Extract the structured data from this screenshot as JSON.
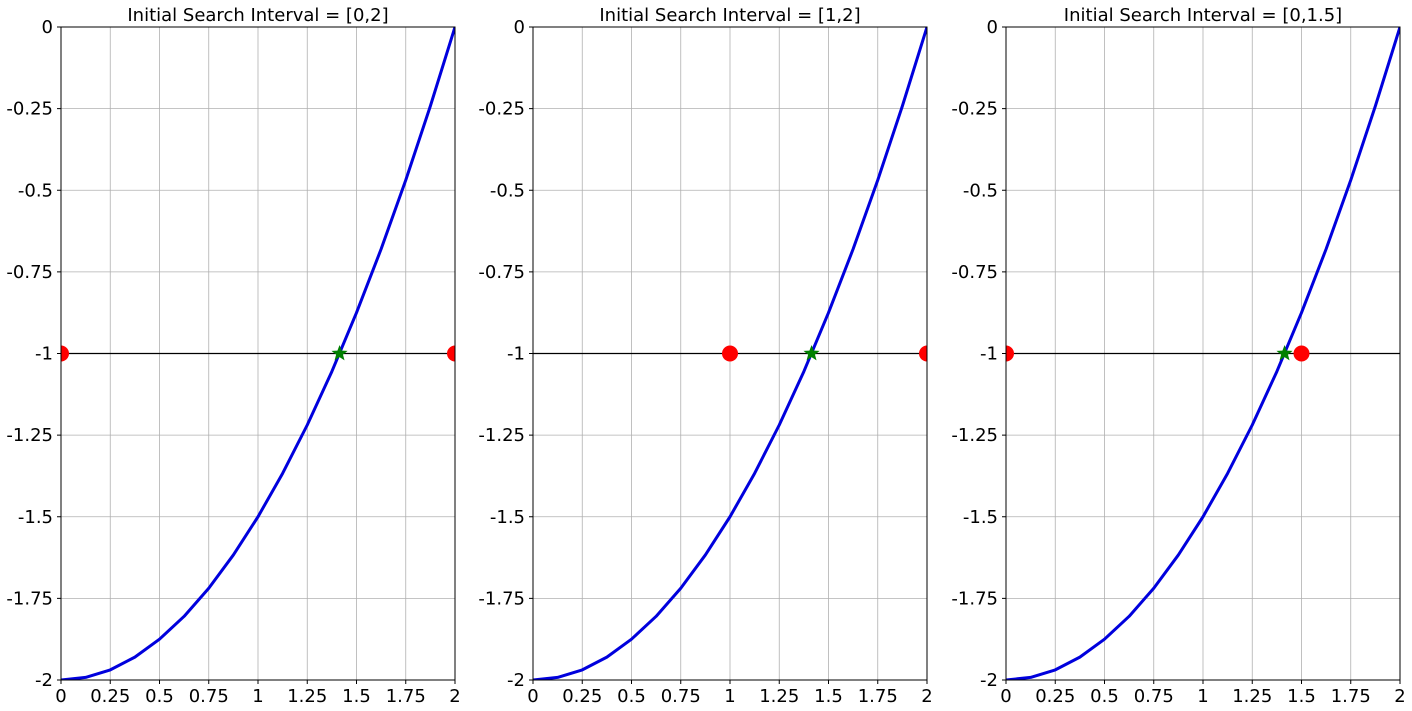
{
  "chart_data": [
    {
      "type": "line",
      "title": "Initial Search Interval = [0,2]",
      "xlim": [
        0,
        2
      ],
      "ylim": [
        -2,
        0
      ],
      "grid": true,
      "x_ticks": [
        0,
        0.25,
        0.5,
        0.75,
        1,
        1.25,
        1.5,
        1.75,
        2
      ],
      "x_tick_labels": [
        "0",
        "0.25",
        "0.5",
        "0.75",
        "1",
        "1.25",
        "1.5",
        "1.75",
        "2"
      ],
      "y_ticks": [
        0,
        -0.25,
        -0.5,
        -0.75,
        -1,
        -1.25,
        -1.5,
        -1.75,
        -2
      ],
      "y_tick_labels": [
        "0",
        "-0.25",
        "-0.5",
        "-0.75",
        "-1",
        "-1.25",
        "-1.5",
        "-1.75",
        "-2"
      ],
      "reference_line_y": -1,
      "curve": {
        "color": "#0000dd",
        "x": [
          0,
          0.125,
          0.25,
          0.375,
          0.5,
          0.625,
          0.75,
          0.875,
          1,
          1.125,
          1.25,
          1.375,
          1.5,
          1.625,
          1.75,
          1.875,
          2
        ],
        "y": [
          -2,
          -1.992,
          -1.969,
          -1.93,
          -1.875,
          -1.805,
          -1.719,
          -1.617,
          -1.5,
          -1.367,
          -1.219,
          -1.055,
          -0.875,
          -0.68,
          -0.469,
          -0.242,
          0
        ]
      },
      "endpoints": {
        "color": "#ff0000",
        "x": [
          0,
          2
        ],
        "y": [
          -1,
          -1
        ]
      },
      "root": {
        "color": "#008000",
        "x": 1.414,
        "y": -1
      }
    },
    {
      "type": "line",
      "title": "Initial Search Interval = [1,2]",
      "xlim": [
        0,
        2
      ],
      "ylim": [
        -2,
        0
      ],
      "grid": true,
      "x_ticks": [
        0,
        0.25,
        0.5,
        0.75,
        1,
        1.25,
        1.5,
        1.75,
        2
      ],
      "x_tick_labels": [
        "0",
        "0.25",
        "0.5",
        "0.75",
        "1",
        "1.25",
        "1.5",
        "1.75",
        "2"
      ],
      "y_ticks": [
        0,
        -0.25,
        -0.5,
        -0.75,
        -1,
        -1.25,
        -1.5,
        -1.75,
        -2
      ],
      "y_tick_labels": [
        "0",
        "-0.25",
        "-0.5",
        "-0.75",
        "-1",
        "-1.25",
        "-1.5",
        "-1.75",
        "-2"
      ],
      "reference_line_y": -1,
      "curve": {
        "color": "#0000dd",
        "x": [
          0,
          0.125,
          0.25,
          0.375,
          0.5,
          0.625,
          0.75,
          0.875,
          1,
          1.125,
          1.25,
          1.375,
          1.5,
          1.625,
          1.75,
          1.875,
          2
        ],
        "y": [
          -2,
          -1.992,
          -1.969,
          -1.93,
          -1.875,
          -1.805,
          -1.719,
          -1.617,
          -1.5,
          -1.367,
          -1.219,
          -1.055,
          -0.875,
          -0.68,
          -0.469,
          -0.242,
          0
        ]
      },
      "endpoints": {
        "color": "#ff0000",
        "x": [
          1,
          2
        ],
        "y": [
          -1,
          -1
        ]
      },
      "root": {
        "color": "#008000",
        "x": 1.414,
        "y": -1
      }
    },
    {
      "type": "line",
      "title": "Initial Search Interval = [0,1.5]",
      "xlim": [
        0,
        2
      ],
      "ylim": [
        -2,
        0
      ],
      "grid": true,
      "x_ticks": [
        0,
        0.25,
        0.5,
        0.75,
        1,
        1.25,
        1.5,
        1.75,
        2
      ],
      "x_tick_labels": [
        "0",
        "0.25",
        "0.5",
        "0.75",
        "1",
        "1.25",
        "1.5",
        "1.75",
        "2"
      ],
      "y_ticks": [
        0,
        -0.25,
        -0.5,
        -0.75,
        -1,
        -1.25,
        -1.5,
        -1.75,
        -2
      ],
      "y_tick_labels": [
        "0",
        "-0.25",
        "-0.5",
        "-0.75",
        "-1",
        "-1.25",
        "-1.5",
        "-1.75",
        "-2"
      ],
      "reference_line_y": -1,
      "curve": {
        "color": "#0000dd",
        "x": [
          0,
          0.125,
          0.25,
          0.375,
          0.5,
          0.625,
          0.75,
          0.875,
          1,
          1.125,
          1.25,
          1.375,
          1.5,
          1.625,
          1.75,
          1.875,
          2
        ],
        "y": [
          -2,
          -1.992,
          -1.969,
          -1.93,
          -1.875,
          -1.805,
          -1.719,
          -1.617,
          -1.5,
          -1.367,
          -1.219,
          -1.055,
          -0.875,
          -0.68,
          -0.469,
          -0.242,
          0
        ]
      },
      "endpoints": {
        "color": "#ff0000",
        "x": [
          0,
          1.5
        ],
        "y": [
          -1,
          -1
        ]
      },
      "root": {
        "color": "#008000",
        "x": 1.414,
        "y": -1
      }
    }
  ]
}
